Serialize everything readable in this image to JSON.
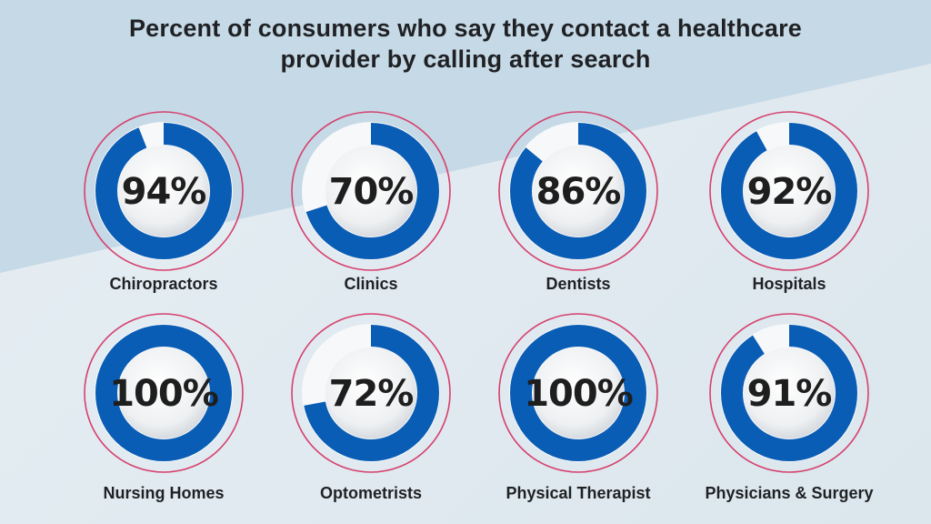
{
  "title_lines": [
    "Percent of consumers who say they contact a healthcare",
    "provider by calling after search"
  ],
  "colors": {
    "ring": "#0a5db5",
    "outline": "#d6406e",
    "track": "#f7f8fa",
    "text": "#1f2124",
    "band": "#c3d6e4"
  },
  "chart_data": {
    "type": "donut",
    "title": "Percent of consumers who say they contact a healthcare provider by calling after search",
    "unit": "%",
    "items": [
      {
        "label": "Chiropractors",
        "value": 94,
        "display": "94%"
      },
      {
        "label": "Clinics",
        "value": 70,
        "display": "70%"
      },
      {
        "label": "Dentists",
        "value": 86,
        "display": "86%"
      },
      {
        "label": "Hospitals",
        "value": 92,
        "display": "92%"
      },
      {
        "label": "Nursing Homes",
        "value": 100,
        "display": "100%"
      },
      {
        "label": "Optometrists",
        "value": 72,
        "display": "72%"
      },
      {
        "label": "Physical Therapist",
        "value": 100,
        "display": "100%"
      },
      {
        "label": "Physicians & Surgery",
        "value": 91,
        "display": "91%"
      }
    ]
  }
}
